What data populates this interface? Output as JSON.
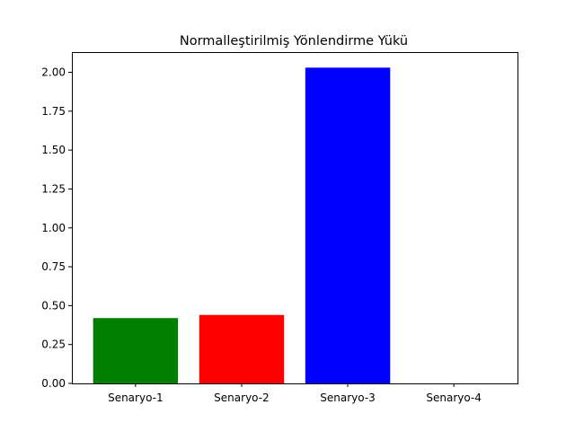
{
  "chart_data": {
    "type": "bar",
    "title": "Normalleştirilmiş Yönlendirme Yükü",
    "xlabel": "",
    "ylabel": "",
    "categories": [
      "Senaryo-1",
      "Senaryo-2",
      "Senaryo-3",
      "Senaryo-4"
    ],
    "values": [
      0.42,
      0.44,
      2.03,
      0.0
    ],
    "colors": [
      "#008000",
      "#ff0000",
      "#0000ff",
      "#ffff00"
    ],
    "ylim": [
      0,
      2.13
    ],
    "yticks": [
      0.0,
      0.25,
      0.5,
      0.75,
      1.0,
      1.25,
      1.5,
      1.75,
      2.0
    ],
    "ytick_labels": [
      "0.00",
      "0.25",
      "0.50",
      "0.75",
      "1.00",
      "1.25",
      "1.50",
      "1.75",
      "2.00"
    ],
    "grid": false,
    "legend": "none"
  }
}
